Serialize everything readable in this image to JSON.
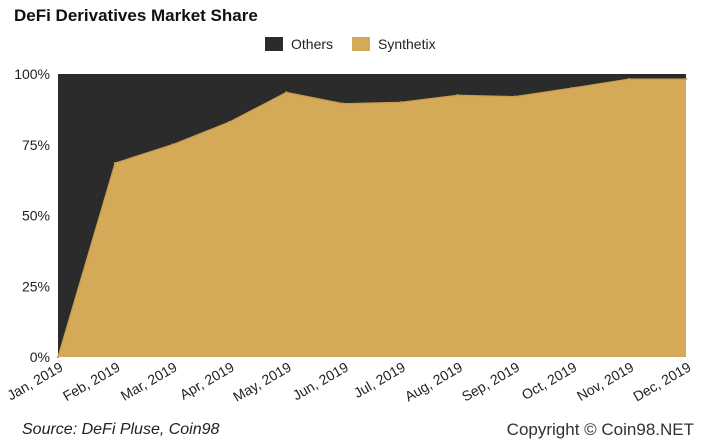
{
  "title": "DeFi Derivatives Market Share",
  "source": "Source: DeFi Pluse, Coin98",
  "copyright": "Copyright © Coin98.NET",
  "colors": {
    "others": "#2b2b2b",
    "synthetix": "#d4aa59",
    "synthetix_line": "#c89d4c"
  },
  "chart_data": {
    "type": "area",
    "stacked": true,
    "percent": true,
    "categories": [
      "Jan, 2019",
      "Feb, 2019",
      "Mar, 2019",
      "Apr, 2019",
      "May, 2019",
      "Jun, 2019",
      "Jul, 2019",
      "Aug, 2019",
      "Sep, 2019",
      "Oct, 2019",
      "Nov, 2019",
      "Dec, 2019"
    ],
    "series": [
      {
        "name": "Others",
        "values": [
          100,
          31.5,
          25,
          17,
          6.5,
          10.5,
          10,
          7.5,
          8,
          5,
          1.8,
          1.8
        ]
      },
      {
        "name": "Synthetix",
        "values": [
          0,
          68.5,
          75,
          83,
          93.5,
          89.5,
          90,
          92.5,
          92,
          95,
          98.2,
          98.2
        ]
      }
    ],
    "yticks": [
      "0%",
      "25%",
      "50%",
      "75%",
      "100%"
    ],
    "ylim": [
      0,
      100
    ],
    "legend_position": "top-center",
    "grid": false
  }
}
